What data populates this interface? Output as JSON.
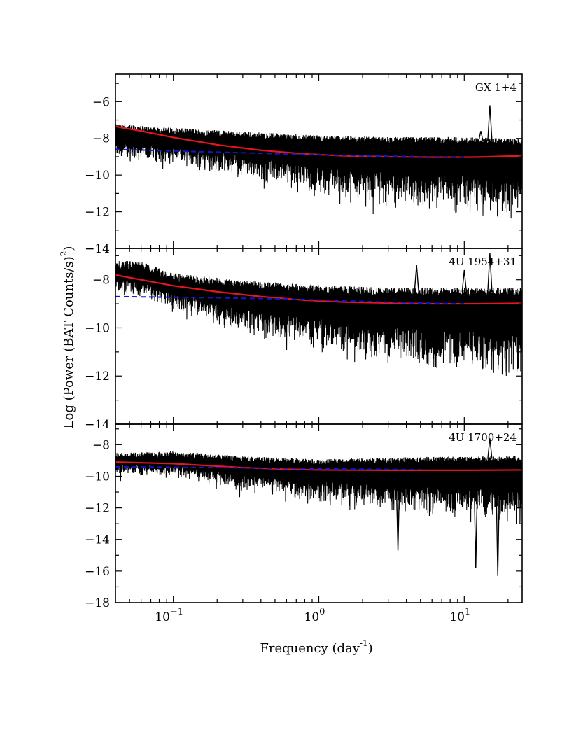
{
  "chart_data": [
    {
      "type": "line",
      "title": "GX 1+4",
      "xlabel": "Frequency (day",
      "xlabel_sup": "-1",
      "xlabel_end": ")",
      "ylabel": "Log (Power (BAT Counts/s)",
      "ylabel_sup": "2",
      "ylabel_end": ")",
      "xscale": "log",
      "xlim": [
        0.04,
        25
      ],
      "ylim": [
        -14,
        -4.5
      ],
      "yticks": [
        -14,
        -12,
        -10,
        -8,
        -6
      ],
      "xticks": [
        0.1,
        1,
        10
      ],
      "xtick_labels": [
        {
          "base": "10",
          "exp": "−1"
        },
        {
          "base": "10",
          "exp": "0"
        },
        {
          "base": "10",
          "exp": "1"
        }
      ],
      "legend": "none",
      "grid": false,
      "series": [
        {
          "type": "noise",
          "color": "#000000",
          "upper": [
            [
              0.04,
              -7.4
            ],
            [
              0.1,
              -7.6
            ],
            [
              0.3,
              -7.8
            ],
            [
              1,
              -8.0
            ],
            [
              3,
              -8.1
            ],
            [
              10,
              -8.1
            ],
            [
              25,
              -8.2
            ]
          ],
          "lower": [
            [
              0.04,
              -9.3
            ],
            [
              0.1,
              -9.5
            ],
            [
              0.3,
              -10.3
            ],
            [
              1,
              -11.3
            ],
            [
              3,
              -12.0
            ],
            [
              10,
              -12.3
            ],
            [
              25,
              -12.6
            ]
          ],
          "spikes": [
            [
              15,
              -6.2
            ],
            [
              13,
              -7.6
            ]
          ]
        },
        {
          "type": "line",
          "color": "#e8141c",
          "points": [
            [
              0.04,
              -7.35
            ],
            [
              0.06,
              -7.6
            ],
            [
              0.1,
              -7.95
            ],
            [
              0.2,
              -8.35
            ],
            [
              0.4,
              -8.65
            ],
            [
              0.8,
              -8.85
            ],
            [
              1.5,
              -8.95
            ],
            [
              3,
              -9.0
            ],
            [
              6,
              -9.02
            ],
            [
              12,
              -9.02
            ],
            [
              25,
              -8.95
            ]
          ]
        },
        {
          "type": "dashed",
          "color": "#1414d2",
          "points": [
            [
              0.04,
              -8.6
            ],
            [
              0.2,
              -8.75
            ],
            [
              0.6,
              -8.85
            ],
            [
              2,
              -8.95
            ],
            [
              5,
              -9.0
            ],
            [
              10,
              -9.02
            ]
          ]
        }
      ]
    },
    {
      "type": "line",
      "title": "4U 1954+31",
      "xscale": "log",
      "xlim": [
        0.04,
        25
      ],
      "ylim": [
        -14,
        -6.7
      ],
      "yticks": [
        -14,
        -12,
        -10,
        -8
      ],
      "xticks": [
        0.1,
        1,
        10
      ],
      "legend": "none",
      "grid": false,
      "series": [
        {
          "type": "noise",
          "color": "#000000",
          "upper": [
            [
              0.04,
              -7.4
            ],
            [
              0.06,
              -7.4
            ],
            [
              0.1,
              -7.9
            ],
            [
              0.3,
              -8.2
            ],
            [
              1,
              -8.4
            ],
            [
              3,
              -8.5
            ],
            [
              10,
              -8.5
            ],
            [
              25,
              -8.5
            ]
          ],
          "lower": [
            [
              0.04,
              -8.6
            ],
            [
              0.1,
              -9.3
            ],
            [
              0.3,
              -10.3
            ],
            [
              1,
              -11.0
            ],
            [
              3,
              -11.7
            ],
            [
              10,
              -12.0
            ],
            [
              25,
              -12.3
            ]
          ],
          "spikes": [
            [
              15,
              -6.9
            ],
            [
              4.7,
              -7.4
            ],
            [
              10,
              -7.6
            ]
          ]
        },
        {
          "type": "line",
          "color": "#e8141c",
          "points": [
            [
              0.04,
              -7.8
            ],
            [
              0.06,
              -8.0
            ],
            [
              0.1,
              -8.25
            ],
            [
              0.2,
              -8.5
            ],
            [
              0.4,
              -8.7
            ],
            [
              0.8,
              -8.85
            ],
            [
              1.5,
              -8.93
            ],
            [
              3,
              -8.97
            ],
            [
              6,
              -9.0
            ],
            [
              12,
              -9.0
            ],
            [
              25,
              -8.98
            ]
          ]
        },
        {
          "type": "dashed",
          "color": "#1414d2",
          "points": [
            [
              0.04,
              -8.7
            ],
            [
              0.2,
              -8.75
            ],
            [
              0.6,
              -8.8
            ],
            [
              2,
              -8.9
            ],
            [
              5,
              -8.97
            ],
            [
              10,
              -9.0
            ]
          ]
        }
      ]
    },
    {
      "type": "line",
      "title": "4U 1700+24",
      "xscale": "log",
      "xlim": [
        0.04,
        25
      ],
      "ylim": [
        -18,
        -6.7
      ],
      "yticks": [
        -18,
        -16,
        -14,
        -12,
        -10,
        -8
      ],
      "xticks": [
        0.1,
        1,
        10
      ],
      "legend": "none",
      "grid": false,
      "series": [
        {
          "type": "noise",
          "color": "#000000",
          "upper": [
            [
              0.04,
              -8.7
            ],
            [
              0.1,
              -8.6
            ],
            [
              0.3,
              -8.9
            ],
            [
              1,
              -9.1
            ],
            [
              3,
              -9.0
            ],
            [
              10,
              -8.9
            ],
            [
              25,
              -8.9
            ]
          ],
          "lower": [
            [
              0.04,
              -9.9
            ],
            [
              0.1,
              -10.2
            ],
            [
              0.3,
              -11.0
            ],
            [
              1,
              -11.8
            ],
            [
              3,
              -12.5
            ],
            [
              10,
              -12.9
            ],
            [
              25,
              -13.1
            ]
          ],
          "spikes": [
            [
              15,
              -7.6
            ],
            [
              3.5,
              -14.7
            ],
            [
              12,
              -15.8
            ],
            [
              17,
              -16.3
            ]
          ]
        },
        {
          "type": "line",
          "color": "#e8141c",
          "points": [
            [
              0.04,
              -9.1
            ],
            [
              0.1,
              -9.2
            ],
            [
              0.3,
              -9.45
            ],
            [
              0.6,
              -9.55
            ],
            [
              1,
              -9.6
            ],
            [
              3,
              -9.62
            ],
            [
              10,
              -9.62
            ],
            [
              25,
              -9.6
            ]
          ]
        },
        {
          "type": "dashed",
          "color": "#1414d2",
          "points": [
            [
              0.04,
              -9.4
            ],
            [
              0.2,
              -9.45
            ],
            [
              0.6,
              -9.5
            ],
            [
              2,
              -9.55
            ],
            [
              5,
              -9.58
            ]
          ]
        }
      ]
    }
  ]
}
